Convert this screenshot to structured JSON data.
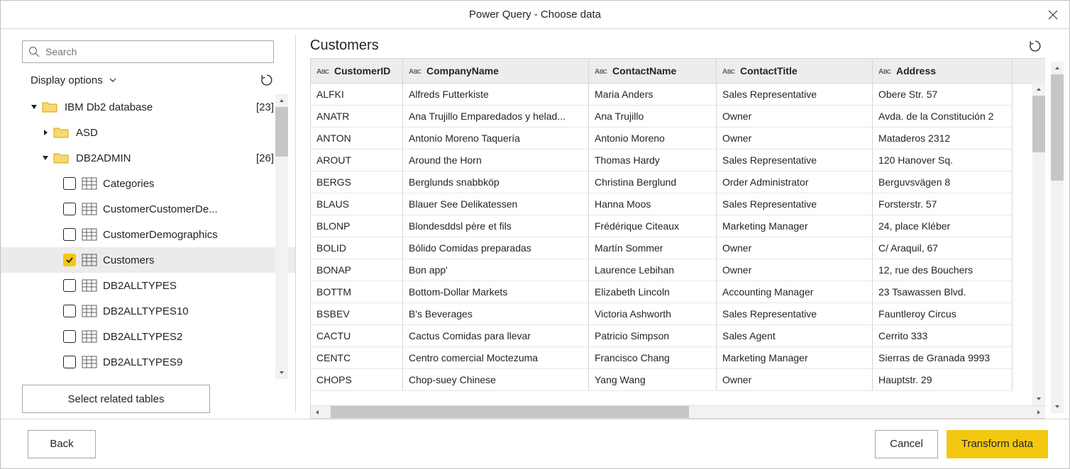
{
  "window": {
    "title": "Power Query - Choose data"
  },
  "left": {
    "search_placeholder": "Search",
    "display_options_label": "Display options",
    "select_related_label": "Select related tables"
  },
  "tree": {
    "root": {
      "label": "IBM Db2 database",
      "count": "[23]"
    },
    "asd": {
      "label": "ASD"
    },
    "db2admin": {
      "label": "DB2ADMIN",
      "count": "[26]"
    },
    "items": [
      {
        "label": "Categories",
        "checked": false
      },
      {
        "label": "CustomerCustomerDe...",
        "checked": false
      },
      {
        "label": "CustomerDemographics",
        "checked": false
      },
      {
        "label": "Customers",
        "checked": true
      },
      {
        "label": "DB2ALLTYPES",
        "checked": false
      },
      {
        "label": "DB2ALLTYPES10",
        "checked": false
      },
      {
        "label": "DB2ALLTYPES2",
        "checked": false
      },
      {
        "label": "DB2ALLTYPES9",
        "checked": false
      }
    ]
  },
  "preview": {
    "title": "Customers",
    "columns": [
      {
        "name": "CustomerID",
        "type": "text"
      },
      {
        "name": "CompanyName",
        "type": "text"
      },
      {
        "name": "ContactName",
        "type": "text"
      },
      {
        "name": "ContactTitle",
        "type": "text"
      },
      {
        "name": "Address",
        "type": "text"
      }
    ],
    "rows": [
      [
        "ALFKI",
        "Alfreds Futterkiste",
        "Maria Anders",
        "Sales Representative",
        "Obere Str. 57"
      ],
      [
        "ANATR",
        "Ana Trujillo Emparedados y helad...",
        "Ana Trujillo",
        "Owner",
        "Avda. de la Constitución 2"
      ],
      [
        "ANTON",
        "Antonio Moreno Taquería",
        "Antonio Moreno",
        "Owner",
        "Mataderos 2312"
      ],
      [
        "AROUT",
        "Around the Horn",
        "Thomas Hardy",
        "Sales Representative",
        "120 Hanover Sq."
      ],
      [
        "BERGS",
        "Berglunds snabbköp",
        "Christina Berglund",
        "Order Administrator",
        "Berguvsvägen 8"
      ],
      [
        "BLAUS",
        "Blauer See Delikatessen",
        "Hanna Moos",
        "Sales Representative",
        "Forsterstr. 57"
      ],
      [
        "BLONP",
        "Blondesddsl père et fils",
        "Frédérique Citeaux",
        "Marketing Manager",
        "24, place Kléber"
      ],
      [
        "BOLID",
        "Bólido Comidas preparadas",
        "Martín Sommer",
        "Owner",
        "C/ Araquil, 67"
      ],
      [
        "BONAP",
        "Bon app'",
        "Laurence Lebihan",
        "Owner",
        "12, rue des Bouchers"
      ],
      [
        "BOTTM",
        "Bottom-Dollar Markets",
        "Elizabeth Lincoln",
        "Accounting Manager",
        "23 Tsawassen Blvd."
      ],
      [
        "BSBEV",
        "B's Beverages",
        "Victoria Ashworth",
        "Sales Representative",
        "Fauntleroy Circus"
      ],
      [
        "CACTU",
        "Cactus Comidas para llevar",
        "Patricio Simpson",
        "Sales Agent",
        "Cerrito 333"
      ],
      [
        "CENTC",
        "Centro comercial Moctezuma",
        "Francisco Chang",
        "Marketing Manager",
        "Sierras de Granada 9993"
      ],
      [
        "CHOPS",
        "Chop-suey Chinese",
        "Yang Wang",
        "Owner",
        "Hauptstr. 29"
      ]
    ]
  },
  "footer": {
    "back": "Back",
    "cancel": "Cancel",
    "transform": "Transform data"
  },
  "colors": {
    "accent": "#f2c811",
    "border": "#d8d6d4",
    "scroll_thumb": "#c8c6c4",
    "scroll_track": "#f3f2f1",
    "header_bg": "#eeedec",
    "selected_bg": "#edebe9"
  }
}
